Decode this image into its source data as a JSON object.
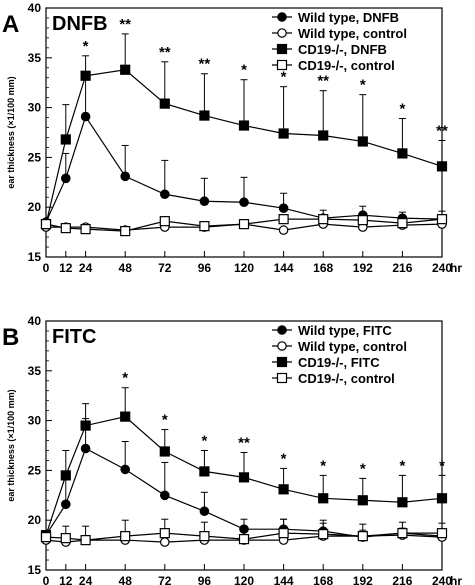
{
  "chart_data": [
    {
      "type": "line",
      "panel_letter": "A",
      "title": "DNFB",
      "ylabel": "ear thickness (×1/100 mm)",
      "xlabel": "hr",
      "ylim": [
        15,
        40
      ],
      "yticks": [
        15,
        20,
        25,
        30,
        35,
        40
      ],
      "x": [
        0,
        12,
        24,
        48,
        72,
        96,
        120,
        144,
        168,
        192,
        216,
        240
      ],
      "legend_position": "top-right",
      "series": [
        {
          "name": "Wild type, DNFB",
          "marker": "filled-circle",
          "values": [
            18.5,
            22.9,
            29.1,
            23.1,
            21.3,
            20.6,
            20.5,
            19.9,
            18.9,
            19.2,
            18.9,
            18.8
          ],
          "error": [
            0,
            2.5,
            3.8,
            3.1,
            3.4,
            2.3,
            2.5,
            1.5,
            0.8,
            0.9,
            0.6,
            0.8
          ]
        },
        {
          "name": "Wild type, control",
          "marker": "open-circle",
          "values": [
            18.0,
            18.0,
            18.0,
            17.7,
            18.0,
            18.0,
            18.3,
            17.7,
            18.3,
            18.0,
            18.2,
            18.3
          ],
          "error": [
            0,
            0,
            0,
            0,
            0,
            0,
            0,
            0,
            0,
            0,
            0,
            0
          ]
        },
        {
          "name": "CD19-/-, DNFB",
          "marker": "filled-square",
          "values": [
            18.3,
            26.8,
            33.2,
            33.8,
            30.4,
            29.2,
            28.2,
            27.4,
            27.2,
            26.6,
            25.4,
            24.1
          ],
          "error": [
            0,
            3.5,
            2.0,
            3.6,
            4.2,
            4.2,
            4.6,
            4.7,
            4.5,
            4.7,
            3.5,
            2.6
          ]
        },
        {
          "name": "CD19-/-, control",
          "marker": "open-square",
          "values": [
            18.3,
            17.9,
            17.8,
            17.6,
            18.6,
            18.1,
            18.3,
            18.8,
            18.8,
            18.7,
            18.4,
            18.8
          ],
          "error": [
            0,
            0,
            0,
            0,
            0,
            0,
            0,
            0,
            0,
            0,
            0,
            0
          ]
        }
      ],
      "significance": [
        {
          "x": 24,
          "label": "*"
        },
        {
          "x": 48,
          "label": "**"
        },
        {
          "x": 72,
          "label": "**"
        },
        {
          "x": 96,
          "label": "**"
        },
        {
          "x": 120,
          "label": "*"
        },
        {
          "x": 144,
          "label": "*"
        },
        {
          "x": 168,
          "label": "**"
        },
        {
          "x": 192,
          "label": "*"
        },
        {
          "x": 216,
          "label": "*"
        },
        {
          "x": 240,
          "label": "**"
        }
      ]
    },
    {
      "type": "line",
      "panel_letter": "B",
      "title": "FITC",
      "ylabel": "ear thickness (×1/100 mm)",
      "xlabel": "hr",
      "ylim": [
        15,
        40
      ],
      "yticks": [
        15,
        20,
        25,
        30,
        35,
        40
      ],
      "x": [
        0,
        12,
        24,
        48,
        72,
        96,
        120,
        144,
        168,
        192,
        216,
        240
      ],
      "legend_position": "top-right",
      "series": [
        {
          "name": "Wild type, FITC",
          "marker": "filled-circle",
          "values": [
            18.5,
            21.6,
            27.2,
            25.1,
            22.5,
            20.9,
            19.1,
            19.1,
            18.9,
            18.3,
            18.7,
            18.4
          ],
          "error": [
            0,
            3.0,
            3.0,
            2.8,
            3.3,
            1.9,
            1.0,
            1.0,
            0.8,
            0.7,
            0.5,
            0.6
          ]
        },
        {
          "name": "Wild type, control",
          "marker": "open-circle",
          "values": [
            18.0,
            17.8,
            18.0,
            18.0,
            17.8,
            18.0,
            18.0,
            18.0,
            18.4,
            18.4,
            18.5,
            18.3
          ],
          "error": [
            0,
            0,
            0,
            0,
            0,
            0,
            0,
            0,
            0,
            0,
            0,
            0
          ]
        },
        {
          "name": "CD19-/-, FITC",
          "marker": "filled-square",
          "values": [
            18.5,
            24.5,
            29.5,
            30.4,
            26.9,
            24.9,
            24.3,
            23.1,
            22.2,
            22.0,
            21.8,
            22.2
          ],
          "error": [
            0,
            2.5,
            2.2,
            2.9,
            2.2,
            2.1,
            2.5,
            2.1,
            2.3,
            2.2,
            2.7,
            2.3
          ]
        },
        {
          "name": "CD19-/-, control",
          "marker": "open-square",
          "values": [
            18.3,
            18.2,
            18.0,
            18.4,
            18.7,
            18.4,
            18.1,
            18.7,
            18.6,
            18.4,
            18.7,
            18.7
          ],
          "error": [
            0,
            1.2,
            1.4,
            1.6,
            1.4,
            1.4,
            1.3,
            1.4,
            1.4,
            1.2,
            1.1,
            1.0
          ]
        }
      ],
      "significance": [
        {
          "x": 48,
          "label": "*"
        },
        {
          "x": 72,
          "label": "*"
        },
        {
          "x": 96,
          "label": "*"
        },
        {
          "x": 120,
          "label": "**"
        },
        {
          "x": 144,
          "label": "*"
        },
        {
          "x": 168,
          "label": "*"
        },
        {
          "x": 192,
          "label": "*"
        },
        {
          "x": 216,
          "label": "*"
        },
        {
          "x": 240,
          "label": "*"
        }
      ]
    }
  ]
}
